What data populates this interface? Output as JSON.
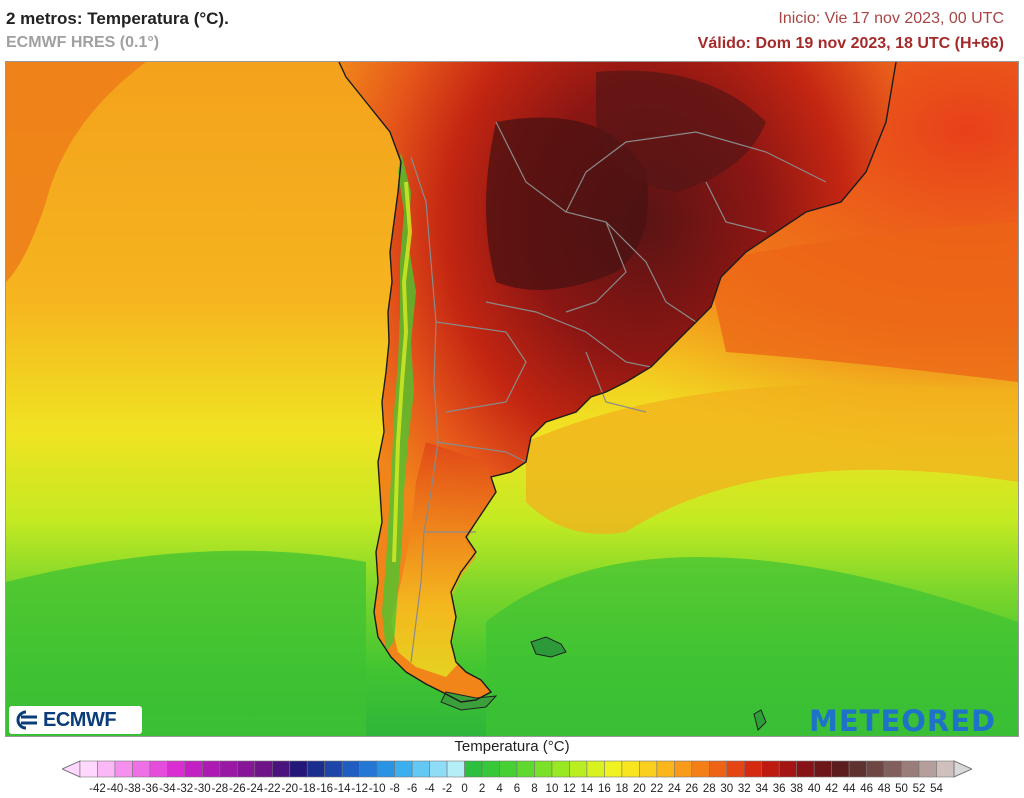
{
  "header": {
    "title": "2 metros: Temperatura (°C).",
    "model": "ECMWF HRES (0.1°)",
    "init": "Inicio: Vie 17 nov 2023, 00 UTC",
    "valid": "Válido: Dom 19 nov 2023, 18 UTC (H+66)"
  },
  "logos": {
    "left": "ECMWF",
    "right": "METEORED",
    "left_icon": "ecmwf-logo-icon"
  },
  "legend": {
    "title": "Temperatura (°C)",
    "ticks": [
      "-42",
      "-40",
      "-38",
      "-36",
      "-34",
      "-32",
      "-30",
      "-28",
      "-26",
      "-24",
      "-22",
      "-20",
      "-18",
      "-16",
      "-14",
      "-12",
      "-10",
      "-8",
      "-6",
      "-4",
      "-2",
      "0",
      "2",
      "4",
      "6",
      "8",
      "10",
      "12",
      "14",
      "16",
      "18",
      "20",
      "22",
      "24",
      "26",
      "28",
      "30",
      "32",
      "34",
      "36",
      "38",
      "40",
      "42",
      "44",
      "46",
      "48",
      "50",
      "52",
      "54"
    ],
    "colors": [
      "#ffd7ff",
      "#fbb8f7",
      "#f590ef",
      "#ee6fe6",
      "#e64cdc",
      "#da2ed2",
      "#c41fc2",
      "#ad1ab3",
      "#9a18a6",
      "#861597",
      "#6e1388",
      "#4a137e",
      "#23187a",
      "#1a2e8e",
      "#1d46a8",
      "#1f5ec0",
      "#2278d4",
      "#2a94e4",
      "#3cb0ee",
      "#63c8f3",
      "#8edcf6",
      "#b6eef8",
      "#2dbf3e",
      "#36c838",
      "#46d033",
      "#5fd92e",
      "#7be128",
      "#99e823",
      "#b9ee20",
      "#d7f21e",
      "#f0f221",
      "#f8e41f",
      "#fbcf1d",
      "#fbb61b",
      "#f99b19",
      "#f57f17",
      "#ef6315",
      "#e54512",
      "#d52a10",
      "#bf1a10",
      "#a41412",
      "#881316",
      "#6e1719",
      "#5c1d1f",
      "#60322f",
      "#6e4744",
      "#815f5c",
      "#9a7d7a",
      "#b59f9c",
      "#cfc0be"
    ]
  },
  "map": {
    "ocean_colors": [
      "#f6b41f",
      "#f39a1b",
      "#ee7418",
      "#e8c41e",
      "#f1ea21",
      "#c6ea20",
      "#8ad828",
      "#49c830",
      "#2fb63a"
    ],
    "land_colors": [
      "#551414",
      "#701515",
      "#8f1513",
      "#b51a12",
      "#d93312",
      "#ec5a15",
      "#f2831a",
      "#f6b21d",
      "#cfe021",
      "#7bcf2e",
      "#2d9f3a"
    ],
    "border_color": "#8a8a8a"
  }
}
